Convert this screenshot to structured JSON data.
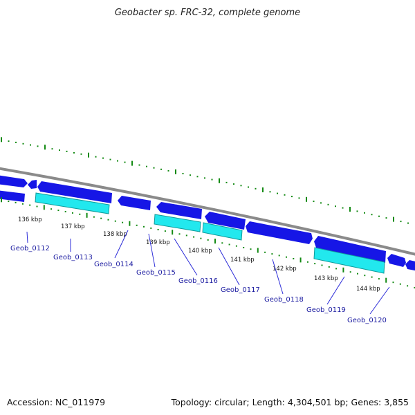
{
  "title": "Geobacter sp. FRC-32, complete genome",
  "footer": {
    "accession": "Accession: NC_011979",
    "summary": "Topology: circular; Length: 4,304,501 bp; Genes: 3,855"
  },
  "colors": {
    "background": "#ffffff",
    "backbone": "#8a8a8a",
    "cds_forward": "#1616e6",
    "cds_reverse": "#1616e6",
    "rna_feature": "#22e8ee",
    "gc_tick": "#138a13",
    "gene_label": "#1a1aa0",
    "label_line": "#2b2bd8"
  },
  "ticks": [
    "136 kbp",
    "137 kbp",
    "138 kbp",
    "139 kbp",
    "140 kbp",
    "141 kbp",
    "142 kbp",
    "143 kbp",
    "144 kbp"
  ],
  "genes": [
    "Geob_0112",
    "Geob_0113",
    "Geob_0114",
    "Geob_0115",
    "Geob_0116",
    "Geob_0117",
    "Geob_0118",
    "Geob_0119",
    "Geob_0120"
  ]
}
